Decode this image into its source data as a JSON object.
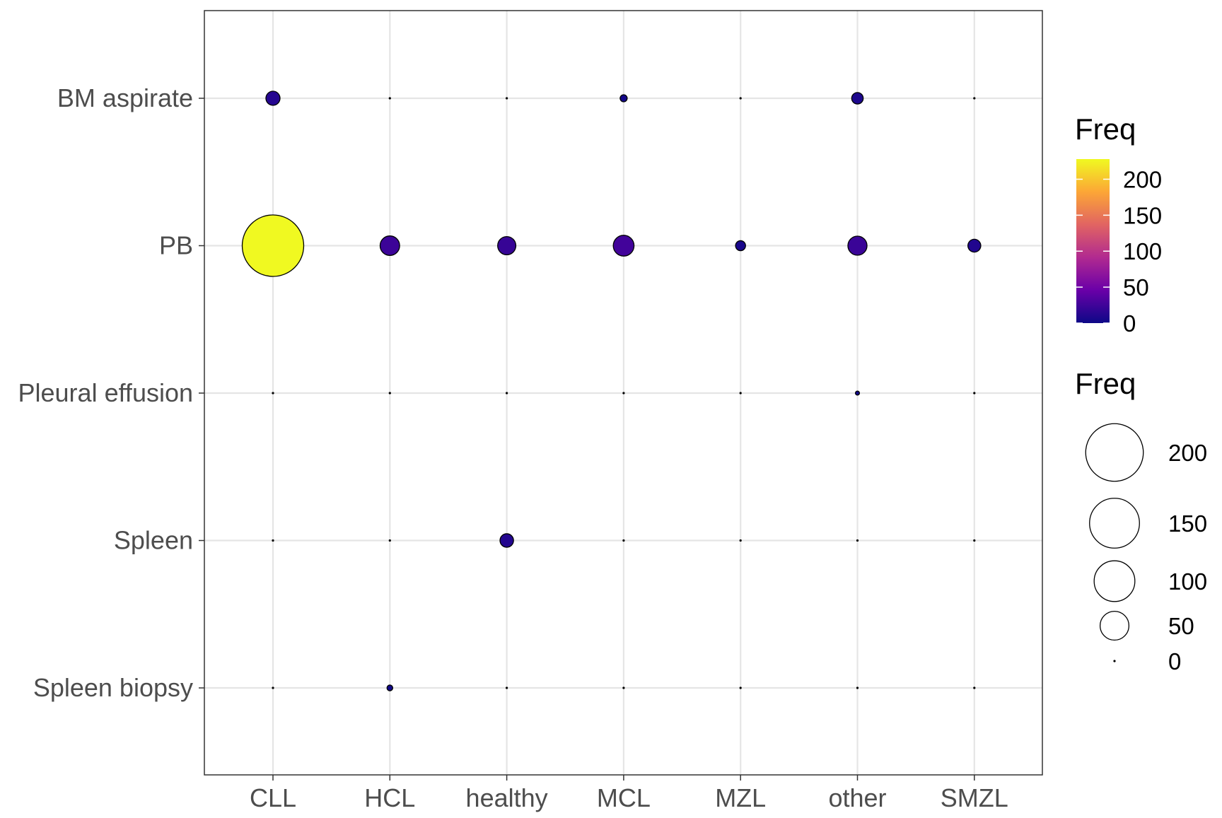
{
  "chart_data": {
    "type": "scatter",
    "x_categories": [
      "CLL",
      "HCL",
      "healthy",
      "MCL",
      "MZL",
      "other",
      "SMZL"
    ],
    "y_categories": [
      "BM aspirate",
      "PB",
      "Pleural effusion",
      "Spleen",
      "Spleen biopsy"
    ],
    "points": [
      {
        "x": "CLL",
        "y": "BM aspirate",
        "freq": 12
      },
      {
        "x": "HCL",
        "y": "BM aspirate",
        "freq": 0
      },
      {
        "x": "healthy",
        "y": "BM aspirate",
        "freq": 0
      },
      {
        "x": "MCL",
        "y": "BM aspirate",
        "freq": 3
      },
      {
        "x": "MZL",
        "y": "BM aspirate",
        "freq": 0
      },
      {
        "x": "other",
        "y": "BM aspirate",
        "freq": 8
      },
      {
        "x": "SMZL",
        "y": "BM aspirate",
        "freq": 0
      },
      {
        "x": "CLL",
        "y": "PB",
        "freq": 228
      },
      {
        "x": "HCL",
        "y": "PB",
        "freq": 23
      },
      {
        "x": "healthy",
        "y": "PB",
        "freq": 20
      },
      {
        "x": "MCL",
        "y": "PB",
        "freq": 26
      },
      {
        "x": "MZL",
        "y": "PB",
        "freq": 6
      },
      {
        "x": "other",
        "y": "PB",
        "freq": 22
      },
      {
        "x": "SMZL",
        "y": "PB",
        "freq": 10
      },
      {
        "x": "CLL",
        "y": "Pleural effusion",
        "freq": 0
      },
      {
        "x": "HCL",
        "y": "Pleural effusion",
        "freq": 0
      },
      {
        "x": "healthy",
        "y": "Pleural effusion",
        "freq": 0
      },
      {
        "x": "MCL",
        "y": "Pleural effusion",
        "freq": 0
      },
      {
        "x": "MZL",
        "y": "Pleural effusion",
        "freq": 0
      },
      {
        "x": "other",
        "y": "Pleural effusion",
        "freq": 1
      },
      {
        "x": "SMZL",
        "y": "Pleural effusion",
        "freq": 0
      },
      {
        "x": "CLL",
        "y": "Spleen",
        "freq": 0
      },
      {
        "x": "HCL",
        "y": "Spleen",
        "freq": 0
      },
      {
        "x": "healthy",
        "y": "Spleen",
        "freq": 11
      },
      {
        "x": "MCL",
        "y": "Spleen",
        "freq": 0
      },
      {
        "x": "MZL",
        "y": "Spleen",
        "freq": 0
      },
      {
        "x": "other",
        "y": "Spleen",
        "freq": 0
      },
      {
        "x": "SMZL",
        "y": "Spleen",
        "freq": 0
      },
      {
        "x": "CLL",
        "y": "Spleen biopsy",
        "freq": 0
      },
      {
        "x": "HCL",
        "y": "Spleen biopsy",
        "freq": 2
      },
      {
        "x": "healthy",
        "y": "Spleen biopsy",
        "freq": 0
      },
      {
        "x": "MCL",
        "y": "Spleen biopsy",
        "freq": 0
      },
      {
        "x": "MZL",
        "y": "Spleen biopsy",
        "freq": 0
      },
      {
        "x": "other",
        "y": "Spleen biopsy",
        "freq": 0
      },
      {
        "x": "SMZL",
        "y": "Spleen biopsy",
        "freq": 0
      }
    ],
    "xlabel": "",
    "ylabel": "",
    "grid": true,
    "legend_position": "right",
    "color_legend": {
      "title": "Freq",
      "palette": "plasma",
      "range": [
        0,
        228
      ],
      "ticks": [
        0,
        50,
        100,
        150,
        200
      ],
      "colors": [
        "#0d0887",
        "#6a00a8",
        "#b12a90",
        "#e16462",
        "#fca636",
        "#f0f921"
      ]
    },
    "size_legend": {
      "title": "Freq",
      "ticks": [
        200,
        150,
        100,
        50,
        0
      ],
      "max_value": 228
    },
    "point_outline_color": "#000000",
    "grid_color": "#e5e5e5",
    "panel_border_color": "#333333"
  }
}
